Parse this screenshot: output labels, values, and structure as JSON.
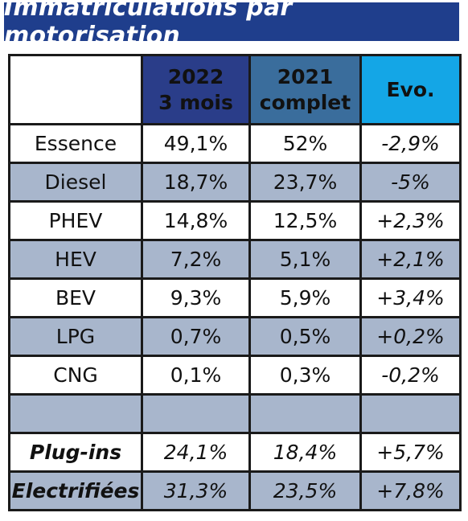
{
  "title": "Immatriculations par motorisation",
  "colors": {
    "title_bg": "#1f3e8c",
    "header_2022": "#2a3d89",
    "header_2021": "#3a6d9c",
    "header_evo": "#14a6e6",
    "shaded_row": "#a8b6cc"
  },
  "table": {
    "headers": {
      "col2022": [
        "2022",
        "3 mois"
      ],
      "col2021": [
        "2021",
        "complet"
      ],
      "evo": "Evo."
    },
    "rows": [
      {
        "label": "Essence",
        "v2022": "49,1%",
        "v2021": "52%",
        "evo": "-2,9%"
      },
      {
        "label": "Diesel",
        "v2022": "18,7%",
        "v2021": "23,7%",
        "evo": "-5%"
      },
      {
        "label": "PHEV",
        "v2022": "14,8%",
        "v2021": "12,5%",
        "evo": "+2,3%"
      },
      {
        "label": "HEV",
        "v2022": "7,2%",
        "v2021": "5,1%",
        "evo": "+2,1%"
      },
      {
        "label": "BEV",
        "v2022": "9,3%",
        "v2021": "5,9%",
        "evo": "+3,4%"
      },
      {
        "label": "LPG",
        "v2022": "0,7%",
        "v2021": "0,5%",
        "evo": "+0,2%"
      },
      {
        "label": "CNG",
        "v2022": "0,1%",
        "v2021": "0,3%",
        "evo": "-0,2%"
      }
    ],
    "summary": [
      {
        "label": "Plug-ins",
        "v2022": "24,1%",
        "v2021": "18,4%",
        "evo": "+5,7%"
      },
      {
        "label": "Electrifiées",
        "v2022": "31,3%",
        "v2021": "23,5%",
        "evo": "+7,8%"
      }
    ]
  }
}
